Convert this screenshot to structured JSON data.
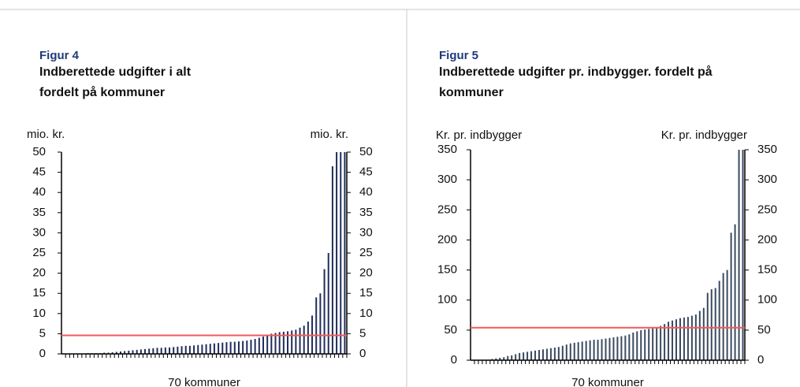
{
  "chart_data": [
    {
      "type": "bar",
      "figure_label": "Figur 4",
      "title": "Indberettede udgifter i alt fordelt på kommuner",
      "y_label": "mio. kr.",
      "y2_label": "mio. kr.",
      "x_label": "70 kommuner",
      "color": "#1f2d5a",
      "values": [
        0.1,
        0.1,
        0.1,
        0.1,
        0.1,
        0.1,
        0.2,
        0.2,
        0.2,
        0.2,
        0.3,
        0.3,
        0.4,
        0.5,
        0.6,
        0.7,
        0.8,
        0.9,
        1.0,
        1.1,
        1.2,
        1.3,
        1.4,
        1.5,
        1.5,
        1.6,
        1.6,
        1.7,
        1.8,
        1.9,
        2.0,
        2.0,
        2.1,
        2.2,
        2.3,
        2.4,
        2.5,
        2.6,
        2.7,
        2.8,
        2.9,
        3.0,
        3.0,
        3.1,
        3.2,
        3.3,
        3.5,
        3.7,
        4.0,
        4.3,
        4.6,
        5.0,
        5.2,
        5.4,
        5.5,
        5.6,
        5.8,
        6.0,
        6.5,
        7.0,
        8.0,
        9.5,
        14,
        15,
        21,
        25,
        46.5,
        50,
        50,
        50
      ],
      "ylim": [
        0,
        50
      ],
      "yticks": [
        0,
        5,
        10,
        15,
        20,
        25,
        30,
        35,
        40,
        45,
        50
      ],
      "y2lim": [
        0,
        50
      ],
      "y2ticks": [
        0,
        5,
        10,
        15,
        20,
        25,
        30,
        35,
        40,
        45,
        50
      ],
      "reference_line": {
        "value": 4.6,
        "color": "#f05a5a"
      }
    },
    {
      "type": "bar",
      "figure_label": "Figur 5",
      "title": "Indberettede udgifter pr. indbygger. fordelt på kommuner",
      "y_label": "Kr. pr. indbygger",
      "y2_label": "Kr. pr. indbygger",
      "x_label": "70 kommuner",
      "color": "#3a4a5e",
      "values": [
        0,
        0,
        0,
        0,
        1,
        2,
        3,
        4,
        5,
        7,
        8,
        10,
        12,
        13,
        14,
        15,
        16,
        17,
        18,
        19,
        20,
        21,
        22,
        24,
        26,
        28,
        29,
        30,
        31,
        32,
        33,
        34,
        34,
        35,
        36,
        37,
        38,
        39,
        40,
        41,
        43,
        46,
        48,
        50,
        51,
        52,
        53,
        55,
        57,
        60,
        64,
        66,
        68,
        70,
        71,
        72,
        74,
        76,
        82,
        87,
        112,
        118,
        120,
        132,
        145,
        150,
        212,
        226,
        350,
        350
      ],
      "ylim": [
        0,
        350
      ],
      "yticks": [
        0,
        50,
        100,
        150,
        200,
        250,
        300,
        350
      ],
      "y2lim": [
        0,
        350
      ],
      "y2ticks": [
        0,
        50,
        100,
        150,
        200,
        250,
        300,
        350
      ],
      "reference_line": {
        "value": 54,
        "color": "#f05a5a"
      }
    }
  ]
}
